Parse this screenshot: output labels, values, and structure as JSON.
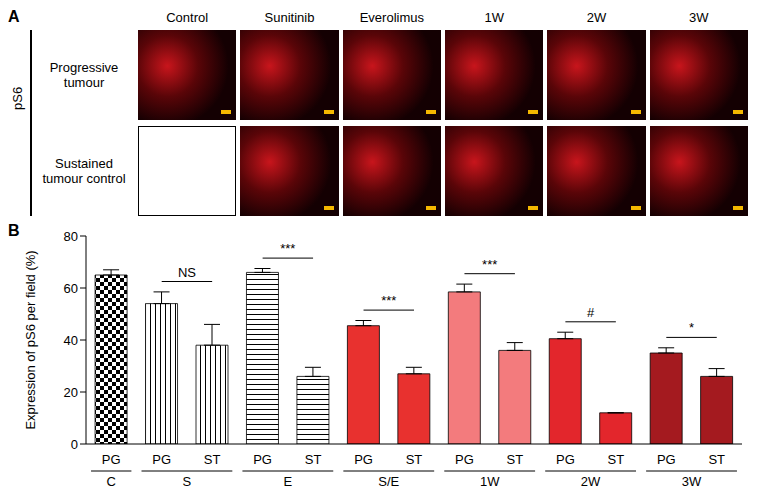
{
  "panel_a": {
    "label": "A",
    "stain": "pS6",
    "columns": [
      "Control",
      "Sunitinib",
      "Everolimus",
      "1W",
      "2W",
      "3W"
    ],
    "rows": [
      "Progressive tumour",
      "Sustained tumour control"
    ]
  },
  "chart_data": {
    "type": "bar",
    "panel_label": "B",
    "y_label": "Expression of pS6 per field (%)",
    "groups": [
      {
        "label": "C",
        "categories": [
          "PG"
        ]
      },
      {
        "label": "S",
        "categories": [
          "PG",
          "ST"
        ]
      },
      {
        "label": "E",
        "categories": [
          "PG",
          "ST"
        ]
      },
      {
        "label": "S/E",
        "categories": [
          "PG",
          "ST"
        ]
      },
      {
        "label": "1W",
        "categories": [
          "PG",
          "ST"
        ]
      },
      {
        "label": "2W",
        "categories": [
          "PG",
          "ST"
        ]
      },
      {
        "label": "3W",
        "categories": [
          "PG",
          "ST"
        ]
      }
    ],
    "values": [
      65,
      54,
      38,
      66,
      26,
      45.5,
      27,
      58.5,
      36,
      40.5,
      12,
      35,
      26
    ],
    "errors": [
      2,
      4.5,
      8,
      1.5,
      3.5,
      2,
      2.5,
      3,
      3,
      2.5,
      0,
      2,
      3
    ],
    "colors": [
      "#000000",
      "#000000",
      "#000000",
      "#000000",
      "#000000",
      "#e8312f",
      "#e8312f",
      "#f37b7d",
      "#f37b7d",
      "#e3262c",
      "#e3262c",
      "#a41a1f",
      "#a41a1f"
    ],
    "ylim": [
      0,
      80
    ],
    "yticks": [
      0,
      20,
      40,
      60,
      80
    ],
    "annotations": [
      {
        "text": "NS",
        "group": "S"
      },
      {
        "text": "***",
        "group": "E"
      },
      {
        "text": "***",
        "group": "S/E"
      },
      {
        "text": "***",
        "group": "1W"
      },
      {
        "text": "#",
        "group": "2W"
      },
      {
        "text": "*",
        "group": "3W"
      }
    ]
  }
}
